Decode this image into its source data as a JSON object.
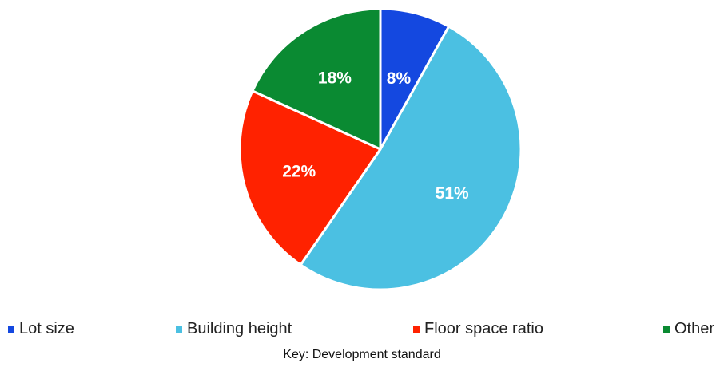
{
  "chart_data": {
    "type": "pie",
    "slices": [
      {
        "label": "Lot size",
        "value": 8,
        "display": "8%",
        "color": "#1448E0"
      },
      {
        "label": "Building height",
        "value": 51,
        "display": "51%",
        "color": "#4BC0E2"
      },
      {
        "label": "Floor space ratio",
        "value": 22,
        "display": "22%",
        "color": "#FF2200"
      },
      {
        "label": "Other",
        "value": 18,
        "display": "18%",
        "color": "#0A8A32"
      }
    ],
    "legend_position": "bottom",
    "legend_title": "Key: Development standard"
  }
}
